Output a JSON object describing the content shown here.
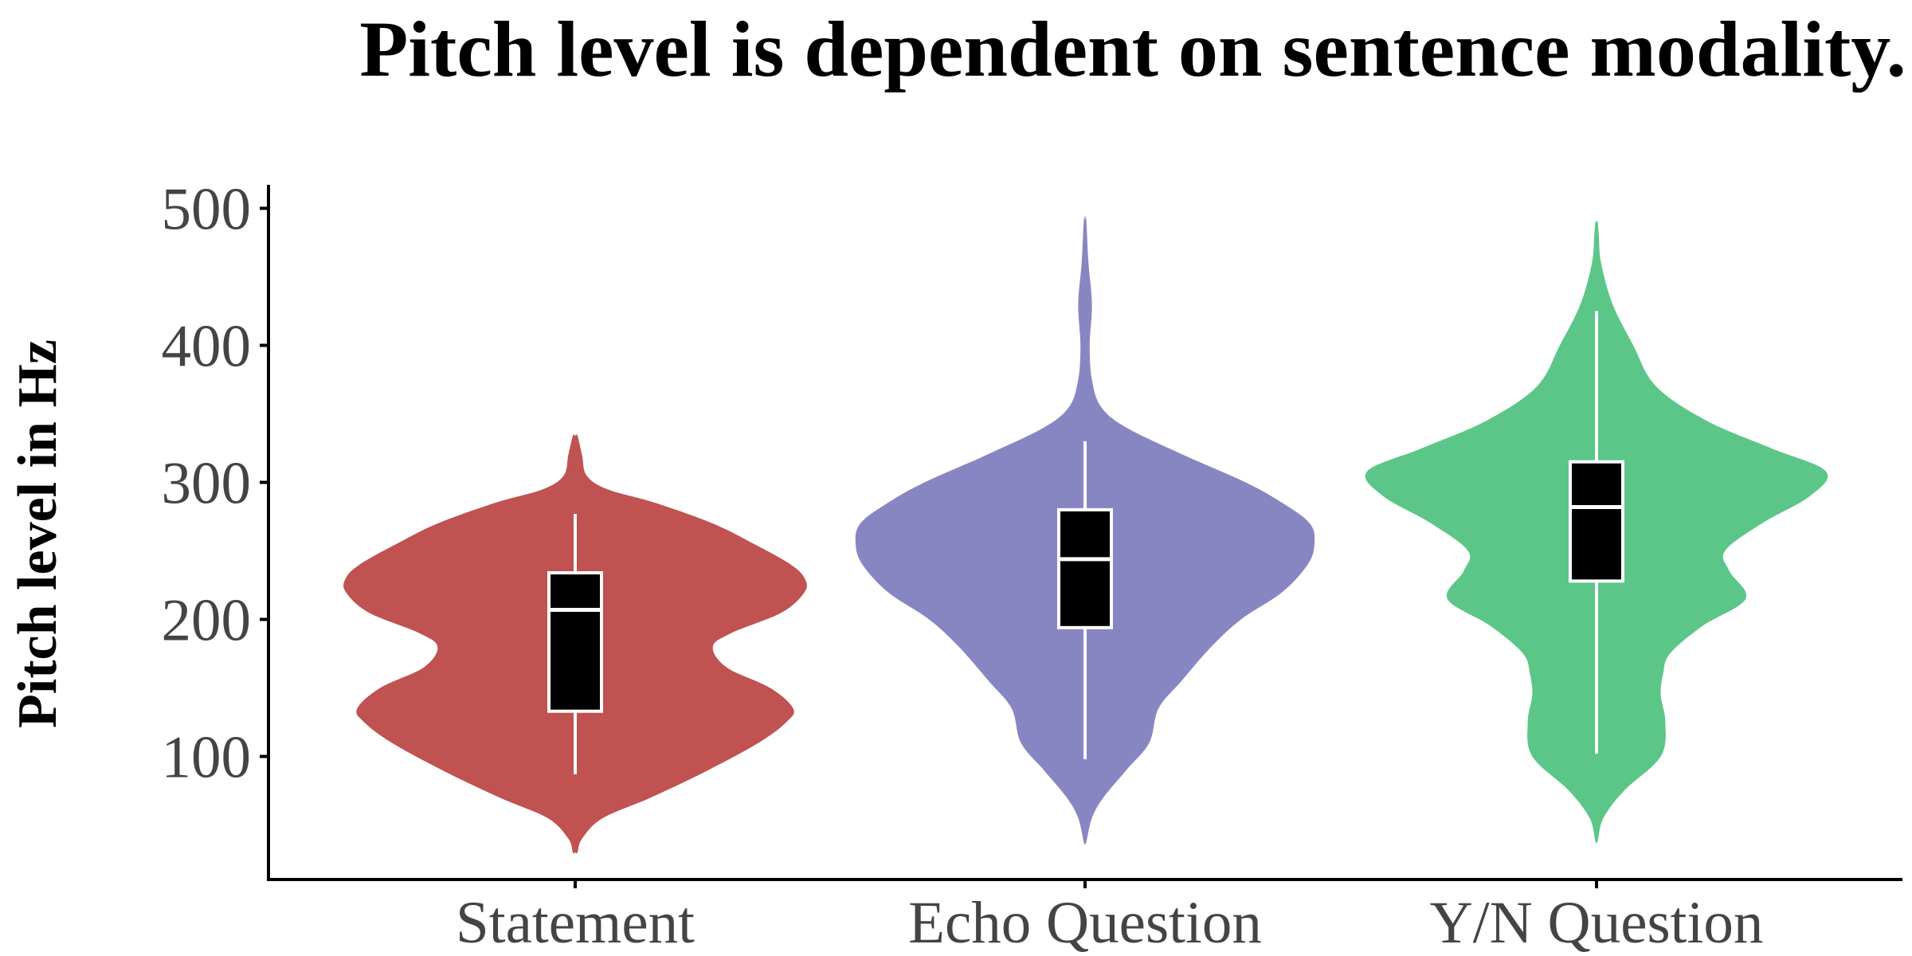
{
  "chart_data": {
    "type": "violin",
    "title": "Pitch level is dependent on sentence modality.",
    "xlabel": "",
    "ylabel": "Pitch level in Hz",
    "ylim": [
      0,
      500
    ],
    "yticks": [
      "100",
      "200",
      "300",
      "400",
      "500"
    ],
    "ytick_values": [
      100,
      200,
      300,
      400,
      500
    ],
    "categories": [
      "Statement",
      "Echo Question",
      "Y/N Question"
    ],
    "colors": [
      "#c05252",
      "#8886c2",
      "#5bc688"
    ],
    "box_fill": "#000000",
    "box_stroke": "#ffffff",
    "grid": false,
    "legend": "none",
    "series": [
      {
        "category": "Statement",
        "box": {
          "whisker_low": 87,
          "q1": 133,
          "median": 207,
          "q3": 234,
          "whisker_high": 277
        },
        "density": [
          [
            30,
            0.01
          ],
          [
            40,
            0.03
          ],
          [
            55,
            0.12
          ],
          [
            70,
            0.33
          ],
          [
            90,
            0.58
          ],
          [
            110,
            0.8
          ],
          [
            125,
            0.92
          ],
          [
            135,
            0.95
          ],
          [
            150,
            0.85
          ],
          [
            165,
            0.66
          ],
          [
            180,
            0.6
          ],
          [
            190,
            0.68
          ],
          [
            205,
            0.9
          ],
          [
            220,
            1.0
          ],
          [
            230,
            1.0
          ],
          [
            240,
            0.94
          ],
          [
            255,
            0.78
          ],
          [
            270,
            0.6
          ],
          [
            285,
            0.35
          ],
          [
            295,
            0.14
          ],
          [
            305,
            0.05
          ],
          [
            320,
            0.03
          ],
          [
            334,
            0.01
          ]
        ]
      },
      {
        "category": "Echo Question",
        "box": {
          "whisker_low": 98,
          "q1": 194,
          "median": 244,
          "q3": 280,
          "whisker_high": 330
        },
        "density": [
          [
            37,
            0.005
          ],
          [
            55,
            0.03
          ],
          [
            70,
            0.08
          ],
          [
            90,
            0.18
          ],
          [
            110,
            0.28
          ],
          [
            135,
            0.32
          ],
          [
            155,
            0.42
          ],
          [
            180,
            0.55
          ],
          [
            200,
            0.68
          ],
          [
            220,
            0.86
          ],
          [
            240,
            0.97
          ],
          [
            255,
            1.0
          ],
          [
            270,
            0.98
          ],
          [
            285,
            0.86
          ],
          [
            300,
            0.7
          ],
          [
            320,
            0.43
          ],
          [
            340,
            0.18
          ],
          [
            355,
            0.07
          ],
          [
            375,
            0.03
          ],
          [
            400,
            0.02
          ],
          [
            430,
            0.03
          ],
          [
            460,
            0.015
          ],
          [
            492,
            0.005
          ]
        ]
      },
      {
        "category": "Y/N Question",
        "box": {
          "whisker_low": 102,
          "q1": 228,
          "median": 282,
          "q3": 315,
          "whisker_high": 425
        },
        "density": [
          [
            38,
            0.005
          ],
          [
            55,
            0.03
          ],
          [
            75,
            0.12
          ],
          [
            100,
            0.28
          ],
          [
            125,
            0.3
          ],
          [
            145,
            0.28
          ],
          [
            160,
            0.29
          ],
          [
            175,
            0.32
          ],
          [
            195,
            0.46
          ],
          [
            215,
            0.65
          ],
          [
            235,
            0.58
          ],
          [
            250,
            0.56
          ],
          [
            270,
            0.72
          ],
          [
            290,
            0.93
          ],
          [
            308,
            1.0
          ],
          [
            325,
            0.76
          ],
          [
            345,
            0.48
          ],
          [
            370,
            0.26
          ],
          [
            400,
            0.16
          ],
          [
            430,
            0.07
          ],
          [
            460,
            0.02
          ],
          [
            480,
            0.01
          ],
          [
            490,
            0.005
          ]
        ]
      }
    ]
  }
}
